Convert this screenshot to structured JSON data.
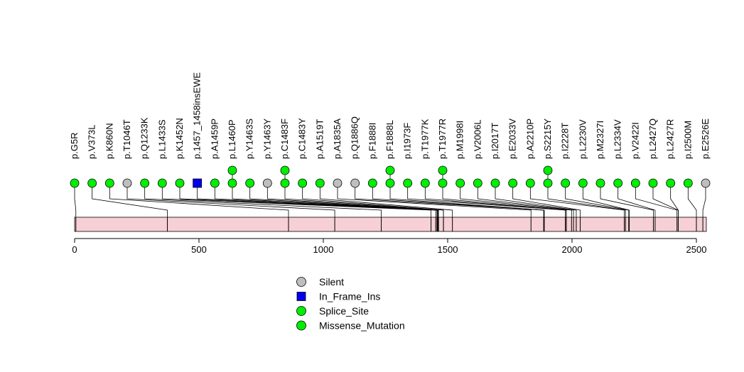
{
  "chart_data": {
    "type": "lollipop",
    "xlim": [
      0,
      2550
    ],
    "x_ticks": [
      0,
      500,
      1000,
      1500,
      2000,
      2500
    ],
    "protein_bar_color": "#f6d0d6",
    "colors": {
      "Silent": "#bebebe",
      "In_Frame_Ins": "#0000ee",
      "Splice_Site": "#00ee00",
      "Missense_Mutation": "#00ee00"
    },
    "legend": [
      {
        "label": "Silent",
        "shape": "circle",
        "color": "#bebebe"
      },
      {
        "label": "In_Frame_Ins",
        "shape": "square",
        "color": "#0000ee"
      },
      {
        "label": "Splice_Site",
        "shape": "circle",
        "color": "#00ee00"
      },
      {
        "label": "Missense_Mutation",
        "shape": "circle",
        "color": "#00ee00"
      }
    ],
    "mutations": [
      {
        "label": "p.G5R",
        "pos": 5,
        "type": "Missense_Mutation",
        "count": 1
      },
      {
        "label": "p.V373L",
        "pos": 373,
        "type": "Missense_Mutation",
        "count": 1
      },
      {
        "label": "p.K860N",
        "pos": 860,
        "type": "Missense_Mutation",
        "count": 1
      },
      {
        "label": "p.T1046T",
        "pos": 1046,
        "type": "Silent",
        "count": 1
      },
      {
        "label": "p.Q1233K",
        "pos": 1233,
        "type": "Missense_Mutation",
        "count": 1
      },
      {
        "label": "p.L1433S",
        "pos": 1433,
        "type": "Missense_Mutation",
        "count": 1
      },
      {
        "label": "p.K1452N",
        "pos": 1452,
        "type": "Missense_Mutation",
        "count": 1
      },
      {
        "label": "p.1457_1458insEWE",
        "pos": 1457,
        "type": "In_Frame_Ins",
        "count": 1
      },
      {
        "label": "p.A1459P",
        "pos": 1459,
        "type": "Missense_Mutation",
        "count": 1
      },
      {
        "label": "p.L1460P",
        "pos": 1460,
        "type": "Missense_Mutation",
        "count": 2
      },
      {
        "label": "p.Y1463S",
        "pos": 1463,
        "type": "Missense_Mutation",
        "count": 1
      },
      {
        "label": "p.Y1463Y",
        "pos": 1463,
        "type": "Silent",
        "count": 1
      },
      {
        "label": "p.C1483F",
        "pos": 1483,
        "type": "Missense_Mutation",
        "count": 2
      },
      {
        "label": "p.C1483Y",
        "pos": 1483,
        "type": "Missense_Mutation",
        "count": 1
      },
      {
        "label": "p.A1519T",
        "pos": 1519,
        "type": "Missense_Mutation",
        "count": 1
      },
      {
        "label": "p.A1835A",
        "pos": 1835,
        "type": "Silent",
        "count": 1
      },
      {
        "label": "p.Q1886Q",
        "pos": 1886,
        "type": "Silent",
        "count": 1
      },
      {
        "label": "p.F1888I",
        "pos": 1888,
        "type": "Missense_Mutation",
        "count": 1
      },
      {
        "label": "p.F1888L",
        "pos": 1888,
        "type": "Missense_Mutation",
        "count": 2
      },
      {
        "label": "p.I1973F",
        "pos": 1973,
        "type": "Missense_Mutation",
        "count": 1
      },
      {
        "label": "p.T1977K",
        "pos": 1977,
        "type": "Missense_Mutation",
        "count": 1
      },
      {
        "label": "p.T1977R",
        "pos": 1977,
        "type": "Missense_Mutation",
        "count": 2
      },
      {
        "label": "p.M1998I",
        "pos": 1998,
        "type": "Missense_Mutation",
        "count": 1
      },
      {
        "label": "p.V2006L",
        "pos": 2006,
        "type": "Missense_Mutation",
        "count": 1
      },
      {
        "label": "p.I2017T",
        "pos": 2017,
        "type": "Missense_Mutation",
        "count": 1
      },
      {
        "label": "p.E2033V",
        "pos": 2033,
        "type": "Missense_Mutation",
        "count": 1
      },
      {
        "label": "p.A2210P",
        "pos": 2210,
        "type": "Missense_Mutation",
        "count": 1
      },
      {
        "label": "p.S2215Y",
        "pos": 2215,
        "type": "Missense_Mutation",
        "count": 2
      },
      {
        "label": "p.I2228T",
        "pos": 2228,
        "type": "Missense_Mutation",
        "count": 1
      },
      {
        "label": "p.L2230V",
        "pos": 2230,
        "type": "Missense_Mutation",
        "count": 1
      },
      {
        "label": "p.M2327I",
        "pos": 2327,
        "type": "Missense_Mutation",
        "count": 1
      },
      {
        "label": "p.L2334V",
        "pos": 2334,
        "type": "Missense_Mutation",
        "count": 1
      },
      {
        "label": "p.V2422I",
        "pos": 2422,
        "type": "Missense_Mutation",
        "count": 1
      },
      {
        "label": "p.L2427Q",
        "pos": 2427,
        "type": "Missense_Mutation",
        "count": 1
      },
      {
        "label": "p.L2427R",
        "pos": 2427,
        "type": "Missense_Mutation",
        "count": 1
      },
      {
        "label": "p.I2500M",
        "pos": 2500,
        "type": "Missense_Mutation",
        "count": 1
      },
      {
        "label": "p.E2526E",
        "pos": 2526,
        "type": "Silent",
        "count": 1
      }
    ]
  }
}
